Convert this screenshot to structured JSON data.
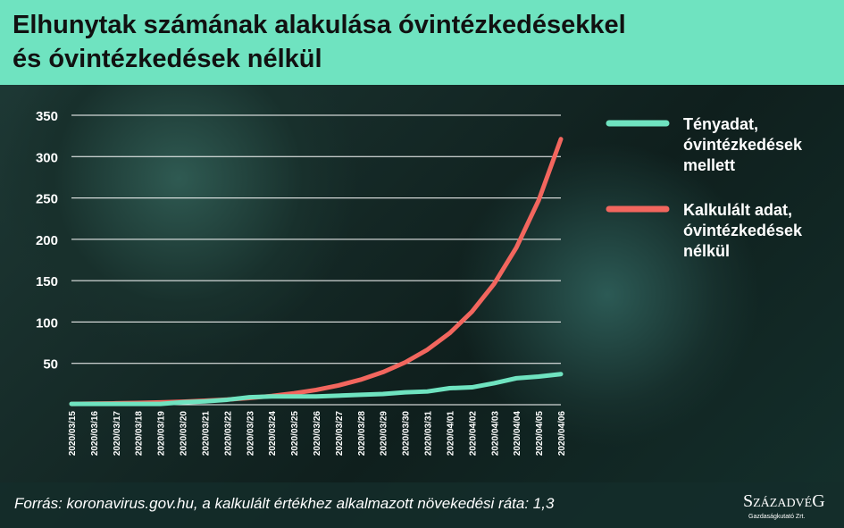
{
  "chart_data": {
    "type": "line",
    "title": [
      "Elhunytak számának alakulása óvintézkedésekkel",
      "és óvintézkedések nélkül"
    ],
    "categories": [
      "2020/03/15",
      "2020/03/16",
      "2020/03/17",
      "2020/03/18",
      "2020/03/19",
      "2020/03/20",
      "2020/03/21",
      "2020/03/22",
      "2020/03/23",
      "2020/03/24",
      "2020/03/25",
      "2020/03/26",
      "2020/03/27",
      "2020/03/28",
      "2020/03/29",
      "2020/03/30",
      "2020/03/31",
      "2020/04/01",
      "2020/04/02",
      "2020/04/03",
      "2020/04/04",
      "2020/04/05",
      "2020/04/06"
    ],
    "series": [
      {
        "name": "Tényadat, óvintézkedések mellett",
        "color": "#6fe3c0",
        "values": [
          1,
          1,
          1,
          1,
          1,
          3,
          4,
          6,
          9,
          10,
          10,
          10,
          11,
          12,
          13,
          15,
          16,
          20,
          21,
          26,
          32,
          34,
          37
        ]
      },
      {
        "name": "Kalkulált adat, óvintézkedések nélkül",
        "color": "#f2665e",
        "values": [
          1,
          1.3,
          1.69,
          2.2,
          2.86,
          3.71,
          4.83,
          6.27,
          8.16,
          10.6,
          13.79,
          17.92,
          23.3,
          30.29,
          39.37,
          51.19,
          66.54,
          86.5,
          112.46,
          146.19,
          190.05,
          247.06,
          321.18
        ]
      }
    ],
    "ylim": [
      0,
      350
    ],
    "yticks": [
      50,
      100,
      150,
      200,
      250,
      300,
      350
    ],
    "grid": true,
    "source": "Forrás: koronavirus.gov.hu, a kalkulált értékhez alkalmazott növekedési ráta: 1,3",
    "logo": "SzázadvéG",
    "logo_sub": "Gazdaságkutató Zrt."
  }
}
